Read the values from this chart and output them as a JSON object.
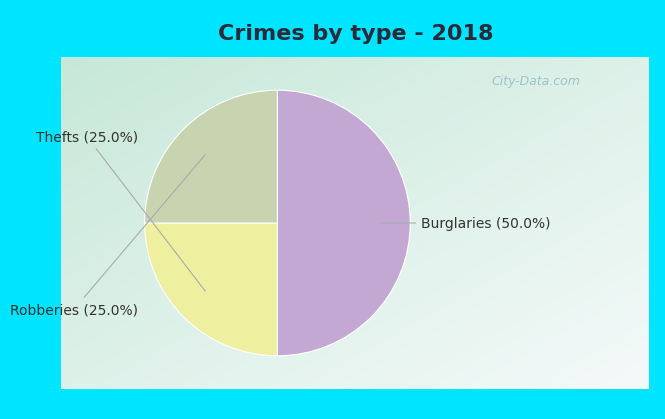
{
  "title": "Crimes by type - 2018",
  "slices": [
    {
      "label": "Burglaries (50.0%)",
      "value": 50.0,
      "color": "#c4a8d4"
    },
    {
      "label": "Thefts (25.0%)",
      "value": 25.0,
      "color": "#eef0a0"
    },
    {
      "label": "Robberies (25.0%)",
      "value": 25.0,
      "color": "#c8d4b0"
    }
  ],
  "bg_color_outer": "#00e5ff",
  "bg_color_inner_tl": "#c8ded8",
  "bg_color_inner_br": "#e8f4ec",
  "title_color": "#2a2a3a",
  "title_fontsize": 16,
  "label_fontsize": 10,
  "start_angle": 90,
  "watermark": "City-Data.com"
}
